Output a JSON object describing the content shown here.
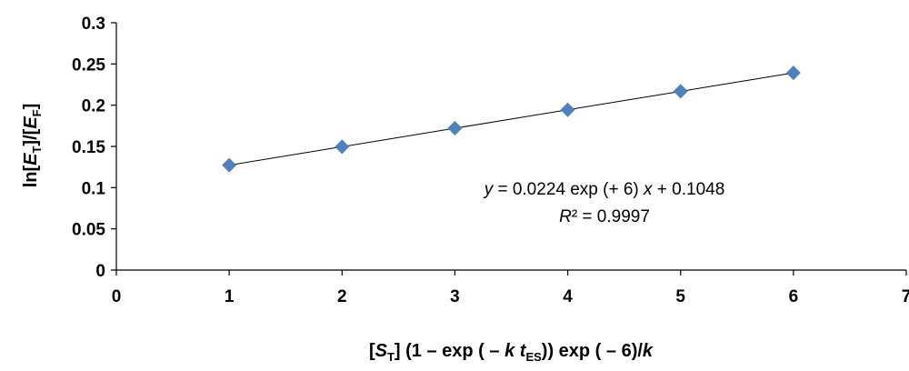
{
  "chart_data": {
    "type": "scatter",
    "title": "",
    "xlabel": {
      "parts": [
        {
          "t": "[",
          "i": false,
          "sub": false
        },
        {
          "t": "S",
          "i": true,
          "sub": false
        },
        {
          "t": "T",
          "i": false,
          "sub": true
        },
        {
          "t": "] (1 – exp ( – ",
          "i": false,
          "sub": false
        },
        {
          "t": "k",
          "i": true,
          "sub": false
        },
        {
          "t": " ",
          "i": false,
          "sub": false
        },
        {
          "t": "t",
          "i": true,
          "sub": false
        },
        {
          "t": "ES",
          "i": false,
          "sub": true
        },
        {
          "t": ")) exp ( – 6)/",
          "i": false,
          "sub": false
        },
        {
          "t": "k",
          "i": true,
          "sub": false
        }
      ]
    },
    "ylabel": {
      "parts": [
        {
          "t": "ln[",
          "i": false,
          "sub": false
        },
        {
          "t": "E",
          "i": true,
          "sub": false
        },
        {
          "t": "T",
          "i": false,
          "sub": true
        },
        {
          "t": "]/[",
          "i": false,
          "sub": false
        },
        {
          "t": "E",
          "i": true,
          "sub": false
        },
        {
          "t": "F",
          "i": false,
          "sub": true
        },
        {
          "t": "]",
          "i": false,
          "sub": false
        }
      ]
    },
    "xlim": [
      0,
      7
    ],
    "ylim": [
      0,
      0.3
    ],
    "xticks": [
      "0",
      "1",
      "2",
      "3",
      "4",
      "5",
      "6",
      "7"
    ],
    "yticks": [
      "0",
      "0.05",
      "0.1",
      "0.15",
      "0.2",
      "0.25",
      "0.3"
    ],
    "grid": false,
    "series": [
      {
        "marker": "diamond",
        "color": "#4F81BD",
        "x": [
          1,
          2,
          3,
          4,
          5,
          6
        ],
        "y": [
          0.1272,
          0.1496,
          0.172,
          0.1944,
          0.2168,
          0.2392
        ]
      }
    ],
    "trendline": {
      "type": "linear",
      "slope": 0.0224,
      "intercept": 0.1048,
      "x_range": [
        1,
        6
      ],
      "color": "#000000",
      "equation": {
        "parts": [
          {
            "t": "y",
            "i": true
          },
          {
            "t": " = 0.0224 exp (+ 6) ",
            "i": false
          },
          {
            "t": "x",
            "i": true
          },
          {
            "t": " + 0.1048",
            "i": false
          }
        ]
      },
      "r_squared": {
        "parts": [
          {
            "t": "R",
            "i": true
          },
          {
            "t": "² = 0.9997",
            "i": false
          }
        ]
      }
    }
  }
}
